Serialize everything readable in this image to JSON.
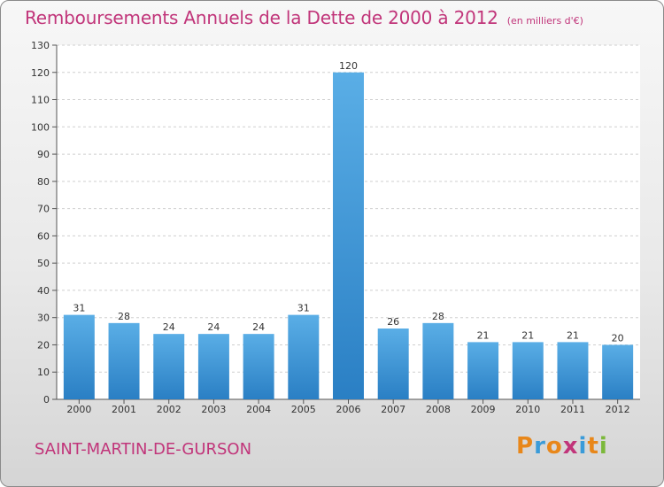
{
  "title": "Remboursements Annuels de la Dette de 2000 à 2012",
  "unit": "(en milliers d'€)",
  "commune": "SAINT-MARTIN-DE-GURSON",
  "logo": {
    "letters": [
      "P",
      "r",
      "o",
      "x",
      "i",
      "t",
      "i"
    ],
    "colors": [
      "#e8871a",
      "#3a9bd9",
      "#e8871a",
      "#c1357a",
      "#3a9bd9",
      "#e8871a",
      "#7bb83a"
    ]
  },
  "colors": {
    "title": "#c1357a",
    "bar_top": "#5aaee6",
    "bar_bottom": "#2a7fc4",
    "grid": "#cfcfcf"
  },
  "chart_data": {
    "type": "bar",
    "categories": [
      "2000",
      "2001",
      "2002",
      "2003",
      "2004",
      "2005",
      "2006",
      "2007",
      "2008",
      "2009",
      "2010",
      "2011",
      "2012"
    ],
    "values": [
      31,
      28,
      24,
      24,
      24,
      31,
      120,
      26,
      28,
      21,
      21,
      21,
      20
    ],
    "ylim": [
      0,
      130
    ],
    "yticks": [
      0,
      10,
      20,
      30,
      40,
      50,
      60,
      70,
      80,
      90,
      100,
      110,
      120,
      130
    ],
    "grid": true,
    "data_labels": true
  }
}
